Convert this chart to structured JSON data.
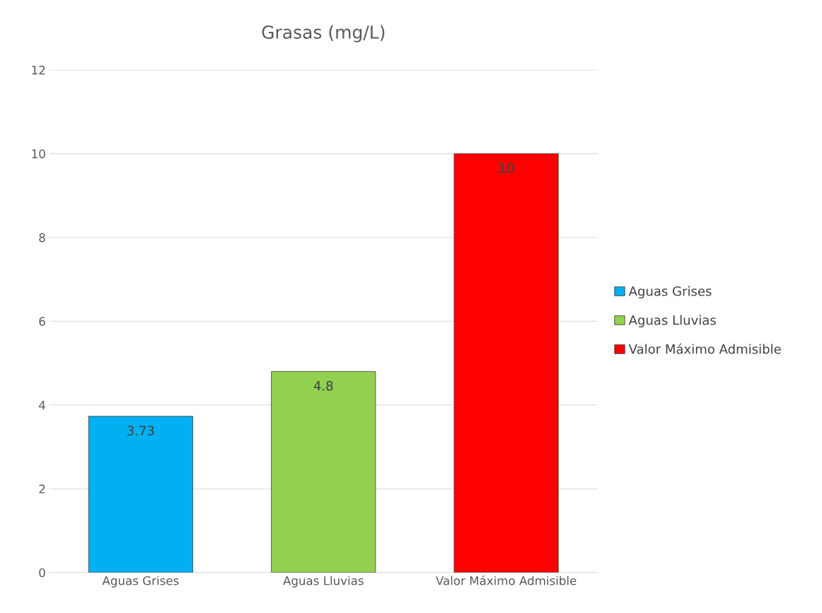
{
  "chart_data": {
    "type": "bar",
    "title": "Grasas (mg/L)",
    "categories": [
      "Aguas Grises",
      "Aguas Lluvias",
      "Valor Máximo Admisible"
    ],
    "series": [
      {
        "name": "Aguas Grises",
        "color": "#00b0f0",
        "values": [
          3.73,
          null,
          null
        ]
      },
      {
        "name": "Aguas Lluvias",
        "color": "#92d050",
        "values": [
          null,
          4.8,
          null
        ]
      },
      {
        "name": "Valor Máximo Admisible",
        "color": "#ff0000",
        "values": [
          null,
          null,
          10
        ]
      }
    ],
    "ylim": [
      0,
      12
    ],
    "yticks": [
      0,
      2,
      4,
      6,
      8,
      10,
      12
    ],
    "grid": "y",
    "legend": "right",
    "data_labels": true
  }
}
